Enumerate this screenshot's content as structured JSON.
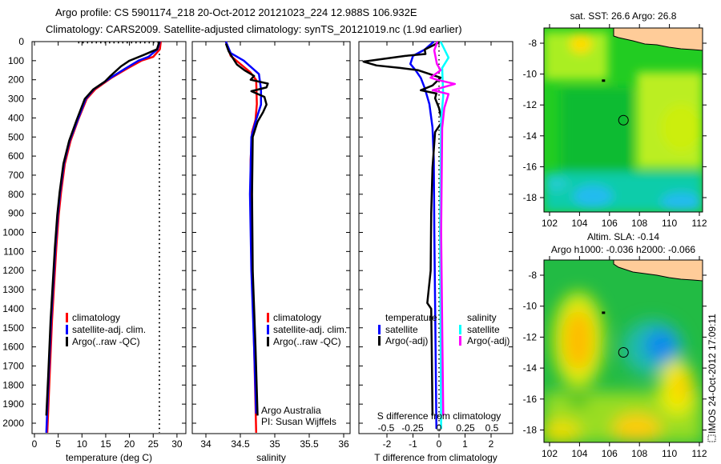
{
  "title": {
    "line1": "Argo profile: CS 5901174_218 20-Oct-2012 20121023_224 12.988S 106.932E",
    "line2": "Climatology: CARS2009. Satellite-adjusted climatology: synTS_20121019.nc (1.9d earlier)"
  },
  "colors": {
    "climatology": "#ff0000",
    "satellite": "#0000ff",
    "argo": "#000000",
    "sal_satellite": "#00ffff",
    "sal_argo": "#ff00ff",
    "land": "#ffcc99"
  },
  "depth_axis": {
    "ticks": [
      "0",
      "100",
      "200",
      "300",
      "400",
      "500",
      "600",
      "700",
      "800",
      "900",
      "1000",
      "1100",
      "1200",
      "1300",
      "1400",
      "1500",
      "1600",
      "1700",
      "1800",
      "1900",
      "2000"
    ],
    "range": [
      0,
      2050
    ]
  },
  "chart_data": [
    {
      "type": "line",
      "name": "temperature",
      "xlabel": "temperature (deg C)",
      "xlim": [
        -0.5,
        32
      ],
      "xticks": [
        "0",
        "5",
        "10",
        "15",
        "20",
        "25",
        "30"
      ],
      "legend": [
        "climatology",
        "satellite-adj. clim.",
        "Argo(..raw -QC)"
      ],
      "series": [
        {
          "name": "climatology",
          "color": "#ff0000",
          "depth": [
            0,
            40,
            80,
            100,
            140,
            190,
            250,
            300,
            410,
            520,
            640,
            790,
            910,
            1080,
            1460,
            1750,
            2050
          ],
          "values": [
            26.6,
            26.4,
            25.0,
            22.5,
            19.6,
            16.2,
            12.8,
            11.0,
            9.2,
            7.6,
            6.4,
            5.6,
            5.1,
            4.6,
            3.7,
            3.2,
            2.7
          ]
        },
        {
          "name": "satellite-adj. clim.",
          "color": "#0000ff",
          "depth": [
            0,
            40,
            80,
            100,
            140,
            190,
            250,
            300,
            410,
            520,
            640,
            790,
            910,
            1080,
            1460,
            1750,
            2050
          ],
          "values": [
            26.4,
            25.9,
            24.0,
            21.9,
            19.2,
            16.0,
            12.5,
            10.8,
            9.1,
            7.4,
            6.2,
            5.4,
            4.9,
            4.4,
            3.5,
            3.0,
            2.5
          ]
        },
        {
          "name": "Argo(..raw -QC)",
          "color": "#000000",
          "depth": [
            0,
            40,
            70,
            100,
            130,
            180,
            210,
            250,
            300,
            410,
            520,
            640,
            790,
            910,
            1080,
            1460,
            1750,
            1960
          ],
          "values": [
            26.3,
            25.8,
            23.0,
            20.0,
            18.2,
            16.0,
            14.8,
            12.4,
            10.6,
            8.9,
            7.3,
            6.1,
            5.3,
            4.8,
            4.3,
            3.4,
            2.9,
            2.5
          ]
        }
      ],
      "reference": {
        "name": "mixed-layer guide",
        "depth": [
          5,
          5,
          850,
          2050
        ],
        "values": [
          9.2,
          26.3,
          26.3,
          26.3
        ]
      }
    },
    {
      "type": "line",
      "name": "salinity",
      "xlabel": "salinity",
      "xlim": [
        33.8,
        36.1
      ],
      "xticks": [
        "34",
        "34.5",
        "35",
        "35.5",
        "36"
      ],
      "legend": [
        "climatology",
        "satellite-adj. clim.",
        "Argo(..raw -QC)"
      ],
      "annotation": [
        "Argo Australia",
        "PI: Susan Wijffels"
      ],
      "series": [
        {
          "name": "climatology",
          "color": "#ff0000",
          "depth": [
            0,
            75,
            117,
            159,
            201,
            327,
            411,
            474,
            620,
            800,
            1200,
            1600,
            2050
          ],
          "values": [
            34.29,
            34.36,
            34.5,
            34.64,
            34.73,
            34.74,
            34.72,
            34.67,
            34.65,
            34.65,
            34.67,
            34.7,
            34.73
          ]
        },
        {
          "name": "satellite-adj. clim.",
          "color": "#0000ff",
          "depth": [
            0,
            60,
            100,
            170,
            250,
            330,
            420,
            500,
            800,
            1200,
            1600,
            1950
          ],
          "values": [
            34.29,
            34.36,
            34.55,
            34.77,
            34.8,
            34.8,
            34.72,
            34.66,
            34.64,
            34.66,
            34.7,
            34.73
          ]
        },
        {
          "name": "Argo(..raw -QC)",
          "color": "#000000",
          "depth": [
            10,
            50,
            80,
            120,
            150,
            180,
            200,
            220,
            240,
            260,
            290,
            330,
            370,
            420,
            500,
            800,
            1200,
            1600,
            1960
          ],
          "values": [
            34.29,
            34.33,
            34.38,
            34.45,
            34.56,
            34.7,
            34.65,
            34.9,
            34.88,
            34.66,
            34.85,
            34.88,
            34.83,
            34.75,
            34.68,
            34.67,
            34.68,
            34.72,
            34.75
          ]
        }
      ]
    },
    {
      "type": "line",
      "name": "differences",
      "xlabel": "T difference from climatology",
      "xlim": [
        -3,
        3
      ],
      "xticks": [
        "-2",
        "-1",
        "0",
        "1",
        "2"
      ],
      "x2label": "S difference from climatology",
      "x2ticks": [
        "-0.5",
        "-0.25",
        "0",
        "0.25",
        "0.5"
      ],
      "legend": {
        "temperature": "temperature",
        "salinity": "salinity",
        "items": [
          "satellite",
          "Argo(-adj)"
        ]
      },
      "series": [
        {
          "name": "T satellite",
          "color": "#0000ff",
          "axis": "T",
          "depth": [
            0,
            42,
            75,
            117,
            150,
            190,
            243,
            327,
            450,
            620,
            1000,
            1500,
            2030
          ],
          "values": [
            -0.2,
            -0.55,
            -1.0,
            -1.1,
            -0.9,
            -0.7,
            -0.55,
            -0.37,
            -0.25,
            -0.2,
            -0.18,
            -0.14,
            -0.1
          ]
        },
        {
          "name": "T Argo(-adj)",
          "color": "#000000",
          "axis": "T",
          "depth": [
            4,
            42,
            65,
            75,
            105,
            125,
            138,
            150,
            189,
            230,
            255,
            272,
            297,
            348,
            420,
            474,
            660,
            900,
            1200,
            1370,
            1400,
            1600,
            1960
          ],
          "values": [
            0,
            -0.55,
            -0.52,
            -1.3,
            -2.9,
            -2.4,
            -1.5,
            -0.8,
            0.06,
            -0.25,
            -0.7,
            -0.1,
            -0.15,
            0,
            0.12,
            -0.15,
            -0.25,
            -0.3,
            -0.32,
            -0.45,
            -0.3,
            -0.28,
            -0.25
          ]
        },
        {
          "name": "S satellite",
          "color": "#00ffff",
          "axis": "S",
          "depth": [
            0,
            84,
            138,
            285,
            411,
            1000,
            2030
          ],
          "values": [
            0.015,
            0.09,
            0.03,
            0.04,
            0.02,
            0.01,
            0.02
          ]
        },
        {
          "name": "S Argo(-adj)",
          "color": "#ff00ff",
          "axis": "S",
          "depth": [
            0,
            46,
            117,
            150,
            189,
            200,
            222,
            255,
            275,
            348,
            453,
            1000,
            1960
          ],
          "values": [
            -0.015,
            -0.045,
            -0.02,
            0.015,
            -0.08,
            -0.02,
            0.15,
            -0.06,
            0.09,
            0.05,
            0.03,
            0.02,
            0.04
          ]
        }
      ]
    }
  ],
  "maps": [
    {
      "name": "sst",
      "title": "sat. SST: 26.6 Argo: 26.8",
      "xticks": [
        "102",
        "104",
        "106",
        "108",
        "110",
        "112"
      ],
      "yticks": [
        "-8",
        "-10",
        "-12",
        "-14",
        "-16",
        "-18"
      ],
      "argo_position": [
        106.932,
        -12.988
      ]
    },
    {
      "name": "sla",
      "title1": "Altim. SLA: -0.14",
      "title2": "Argo h1000: -0.036 h2000: -0.066",
      "xticks": [
        "102",
        "104",
        "106",
        "108",
        "110",
        "112"
      ],
      "yticks": [
        "-8",
        "-10",
        "-12",
        "-14",
        "-16",
        "-18"
      ],
      "argo_position": [
        106.932,
        -12.988
      ]
    }
  ],
  "footer": {
    "stamp": "IMOS 24-Oct-2012 17:09:11"
  }
}
